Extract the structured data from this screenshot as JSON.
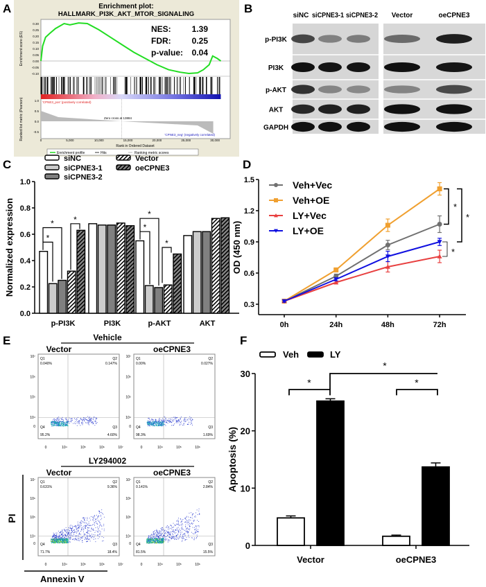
{
  "panel_letters": {
    "a": "A",
    "b": "B",
    "c": "C",
    "d": "D",
    "e": "E",
    "f": "F"
  },
  "chart_data": [
    {
      "panel": "A",
      "type": "line",
      "title": "Enrichment plot:",
      "subtitle": "HALLMARK_PI3K_AKT_MTOR_SIGNALING",
      "stats": [
        "NES:",
        "1.39",
        "FDR:",
        "0.25",
        "p-value:",
        "0.04"
      ],
      "ylabel": "Enrichment score (ES)",
      "ylabel2": "Ranked list metric (Pearson)",
      "xlabel": "Rank in Ordered Dataset",
      "xticks": [
        "0",
        "5,000",
        "10,000",
        "15,000",
        "20,000",
        "25,000",
        "30,000"
      ],
      "yticks": [
        "0.30",
        "0.25",
        "0.20",
        "0.15",
        "0.10",
        "0.05",
        "0.00",
        "-0.05",
        "-0.10"
      ],
      "yticks2": [
        "1.0",
        "0.5",
        "0.0",
        "-0.5"
      ],
      "xlim": [
        0,
        31000
      ],
      "ylim": [
        -0.1,
        0.3
      ],
      "es_curve": {
        "x": [
          0,
          300,
          800,
          1500,
          2500,
          4000,
          5000,
          6500,
          8000,
          10000,
          12000,
          14000,
          16000,
          18000,
          20000,
          22000,
          24000,
          25500,
          27000,
          28000,
          29000,
          29600,
          30400,
          31000
        ],
        "y": [
          0,
          0.12,
          0.19,
          0.22,
          0.26,
          0.3,
          0.29,
          0.305,
          0.3,
          0.25,
          0.19,
          0.13,
          0.07,
          0.02,
          -0.03,
          -0.07,
          -0.09,
          -0.1,
          -0.095,
          -0.07,
          -0.03,
          0.04,
          0.02,
          0
        ]
      },
      "zero_cross_label": "Zero cross at 13884",
      "zero_cross": 13884,
      "pos_label": "'CPNE3_pos' (positively correlated)",
      "neg_label": "'CPNE3_neg' (negatively correlated)",
      "legend": [
        "Enrichment profile",
        "Hits",
        "Ranking metric scores"
      ],
      "colors": {
        "es": "#22dd22",
        "background": "#ece9d8",
        "pos": "#e02020",
        "neg": "#2020c0"
      }
    },
    {
      "panel": "B",
      "type": "table",
      "columns": [
        "siNC",
        "siCPNE3-1",
        "siCPNE3-2",
        "Vector",
        "oeCPNE3"
      ],
      "rows": [
        "p-PI3K",
        "PI3K",
        "p-AKT",
        "AKT",
        "GAPDH"
      ]
    },
    {
      "panel": "C",
      "type": "bar",
      "ylabel": "Normalized expression",
      "categories": [
        "p-PI3K",
        "PI3K",
        "p-AKT",
        "AKT"
      ],
      "ylim": [
        0,
        1.0
      ],
      "yticks": [
        "0.0",
        "0.2",
        "0.4",
        "0.6",
        "0.8",
        "1.0"
      ],
      "series": [
        {
          "name": "siNC",
          "values": [
            0.47,
            0.68,
            0.55,
            0.59
          ],
          "fill": "#ffffff"
        },
        {
          "name": "siCPNE3-1",
          "values": [
            0.225,
            0.67,
            0.21,
            0.62
          ],
          "fill": "#cccccc"
        },
        {
          "name": "siCPNE3-2",
          "values": [
            0.25,
            0.67,
            0.195,
            0.62
          ],
          "fill": "#808080"
        },
        {
          "name": "Vector",
          "values": [
            0.32,
            0.685,
            0.215,
            0.72
          ],
          "fill": "hatch-light"
        },
        {
          "name": "oeCPNE3",
          "values": [
            0.63,
            0.665,
            0.45,
            0.725
          ],
          "fill": "hatch-dark"
        }
      ],
      "significance": "*"
    },
    {
      "panel": "D",
      "type": "line",
      "ylabel": "OD (450 nm)",
      "categories": [
        "0h",
        "24h",
        "48h",
        "72h"
      ],
      "ylim": [
        0.3,
        1.5
      ],
      "yticks": [
        "0.3",
        "0.6",
        "0.9",
        "1.2",
        "1.5"
      ],
      "series": [
        {
          "name": "Veh+Vec",
          "values": [
            0.33,
            0.57,
            0.87,
            1.07
          ],
          "err": [
            0.01,
            0.02,
            0.045,
            0.08
          ],
          "color": "#707070",
          "marker": "circle"
        },
        {
          "name": "Veh+OE",
          "values": [
            0.33,
            0.63,
            1.06,
            1.41
          ],
          "err": [
            0.01,
            0.02,
            0.06,
            0.06
          ],
          "color": "#f0a030",
          "marker": "square"
        },
        {
          "name": "LY+Vec",
          "values": [
            0.33,
            0.51,
            0.66,
            0.76
          ],
          "err": [
            0.01,
            0.015,
            0.05,
            0.06
          ],
          "color": "#e84040",
          "marker": "triangle-up"
        },
        {
          "name": "LY+OE",
          "values": [
            0.33,
            0.54,
            0.76,
            0.9
          ],
          "err": [
            0.01,
            0.015,
            0.05,
            0.035
          ],
          "color": "#1010e0",
          "marker": "triangle-down"
        }
      ],
      "significance": "*"
    },
    {
      "panel": "E",
      "type": "scatter",
      "groups": [
        "Vehicle",
        "LY294002"
      ],
      "columns": [
        "Vector",
        "oeCPNE3"
      ],
      "xlabel": "Annexin V",
      "ylabel": "PI",
      "axis_ticks": [
        "10⁷",
        "10⁶",
        "10⁵",
        "10⁴",
        "0"
      ],
      "x_axis_ticks": [
        "0",
        "10⁴",
        "10⁵",
        "10⁶",
        "10⁷"
      ],
      "quadrant_names": [
        "Q1",
        "Q2",
        "Q3",
        "Q4"
      ],
      "plots": [
        {
          "group": "Vehicle",
          "column": "Vector",
          "quadrants": [
            "0.040%",
            "0.147%",
            "4.60%",
            "95.2%"
          ]
        },
        {
          "group": "Vehicle",
          "column": "oeCPNE3",
          "quadrants": [
            "0.00%",
            "0.027%",
            "1.69%",
            "98.3%"
          ]
        },
        {
          "group": "LY294002",
          "column": "Vector",
          "quadrants": [
            "0.631%",
            "9.36%",
            "18.4%",
            "71.7%"
          ]
        },
        {
          "group": "LY294002",
          "column": "oeCPNE3",
          "quadrants": [
            "0.141%",
            "2.84%",
            "15.5%",
            "81.5%"
          ]
        }
      ]
    },
    {
      "panel": "F",
      "type": "bar",
      "ylabel": "Apoptosis (%)",
      "categories": [
        "Vector",
        "oeCPNE3"
      ],
      "ylim": [
        0,
        30
      ],
      "yticks": [
        "0",
        "10",
        "20",
        "30"
      ],
      "series": [
        {
          "name": "Veh",
          "values": [
            4.8,
            1.6
          ],
          "err": [
            0.35,
            0.2
          ],
          "fill": "#ffffff"
        },
        {
          "name": "LY",
          "values": [
            25.2,
            13.7
          ],
          "err": [
            0.4,
            0.7
          ],
          "fill": "#000000"
        }
      ],
      "significance": "*"
    }
  ]
}
